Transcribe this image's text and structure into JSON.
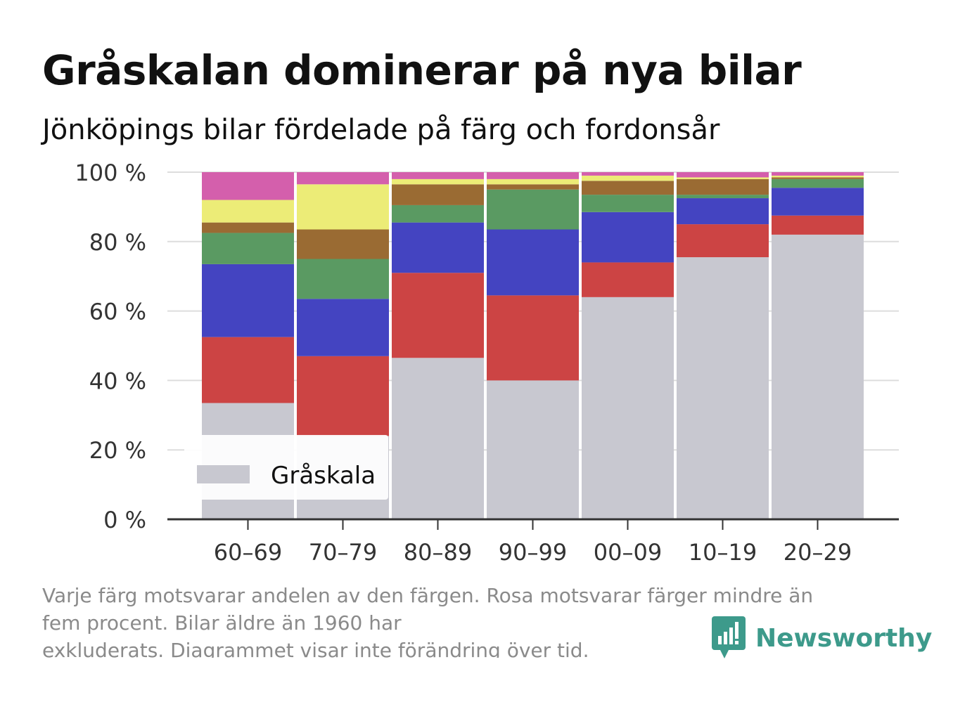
{
  "title": "Gråskalan dominerar på nya bilar",
  "subtitle": "Jönköpings bilar fördelade på färg och fordonsår",
  "note_lines": [
    "Varje färg motsvarar andelen av den färgen. Rosa motsvarar färger mindre än",
    "fem procent. Bilar äldre än 1960 har",
    "exkluderats. Diagrammet visar inte förändring över tid."
  ],
  "brand": {
    "name": "Newsworthy",
    "color": "#3d9a8b"
  },
  "legend": {
    "label": "Gråskala",
    "color": "#c8c8d0",
    "position": "bottom-left"
  },
  "chart_data": {
    "type": "bar",
    "stacked": true,
    "categories": [
      "60–69",
      "70–79",
      "80–89",
      "90–99",
      "00–09",
      "10–19",
      "20–29"
    ],
    "ylim": [
      0,
      100
    ],
    "yticks": [
      0,
      20,
      40,
      60,
      80,
      100
    ],
    "ytick_labels": [
      "0 %",
      "20 %",
      "40 %",
      "60 %",
      "80 %",
      "100 %"
    ],
    "grid": true,
    "series": [
      {
        "name": "Gråskala",
        "color": "#c8c8d0",
        "values": [
          33.5,
          24,
          46.5,
          40,
          64,
          75.5,
          82
        ]
      },
      {
        "color": "#cc4444",
        "values": [
          19,
          23,
          24.5,
          24.5,
          10,
          9.5,
          5.5
        ]
      },
      {
        "color": "#4444c1",
        "values": [
          21,
          16.5,
          14.5,
          19,
          14.5,
          7.5,
          8
        ]
      },
      {
        "color": "#5a9a62",
        "values": [
          9,
          11.5,
          5,
          11.5,
          5,
          1,
          2.5
        ]
      },
      {
        "color": "#9a6b33",
        "values": [
          3,
          8.5,
          6,
          1.5,
          4,
          4.5,
          0.5
        ]
      },
      {
        "color": "#ecec77",
        "values": [
          6.5,
          13,
          1.5,
          1.5,
          1.5,
          0.5,
          0.5
        ]
      },
      {
        "color": "#d45fac",
        "values": [
          8,
          3.5,
          2,
          2,
          1,
          1.5,
          1
        ]
      }
    ]
  }
}
